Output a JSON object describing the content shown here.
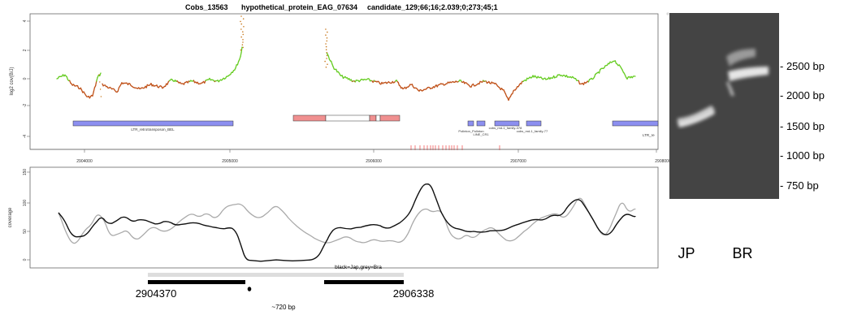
{
  "title": {
    "contig": "Cobs_13563",
    "protein": "hypothetical_protein_EAG_07634",
    "candidate": "candidate_129;66;16;2.039;0;273;45;1"
  },
  "top_panel": {
    "ylabel": "log2 cov(B/J)",
    "yticks": [
      "4",
      "2",
      "0",
      "-2",
      "-4"
    ],
    "features": [
      {
        "label": "LTR_retrotransposon_BEL",
        "kind": "repeat"
      },
      {
        "label": "Polinton_Polinton",
        "kind": "repeat"
      },
      {
        "label": "LINE_CR1",
        "kind": "repeat"
      },
      {
        "label": "cobs_rnd-1_family-378",
        "kind": "repeat"
      },
      {
        "label": "cobs_rnd-1_family-77",
        "kind": "repeat"
      },
      {
        "label": "LTR_re",
        "kind": "repeat"
      }
    ],
    "xticks": [
      "2904000",
      "2905000",
      "2906000",
      "2907000",
      "2908000"
    ]
  },
  "coverage_panel": {
    "ylabel": "coverage",
    "yticks": [
      "0",
      "50",
      "100",
      "150"
    ],
    "legend": "black=Jap,grey=Bra",
    "colors": {
      "jap": "#111111",
      "bra": "#aaaaaa"
    }
  },
  "deletion": {
    "left_coord": "2904370",
    "right_coord": "2906338",
    "size_label": "~720 bp"
  },
  "gel": {
    "ladder": [
      "2500 bp",
      "2000 bp",
      "1500 bp",
      "1000 bp",
      "750 bp"
    ],
    "lanes": [
      "JP",
      "BR"
    ]
  },
  "colors": {
    "repeat": "#8c8ff0",
    "gene_exon": "#f09090",
    "ratio_high": "#66cc22",
    "ratio_low": "#c0521a",
    "ticks_red": "#ee4444"
  }
}
